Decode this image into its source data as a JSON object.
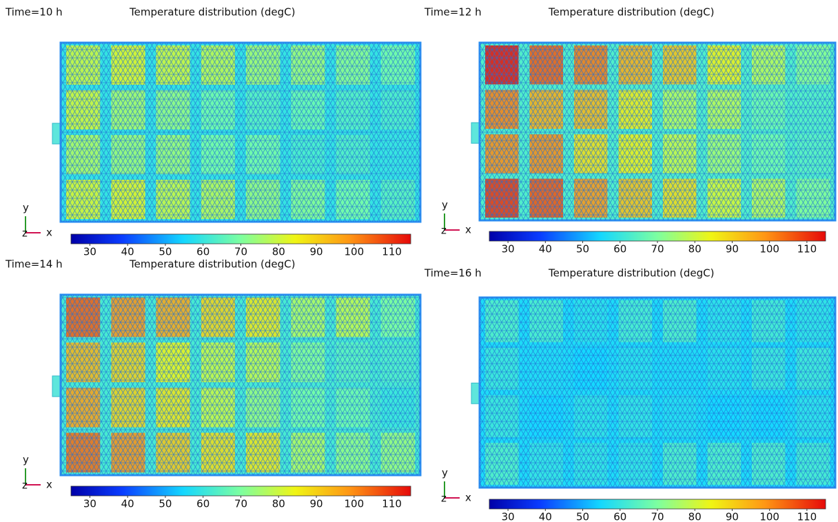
{
  "panels": [
    {
      "time": "Time=10 h",
      "title": "Temperature distribution (degC)",
      "axes": {
        "y": "y",
        "x": "x",
        "z": "z"
      },
      "colorbar": {
        "lim": [
          25,
          115
        ],
        "ticks": [
          30,
          40,
          50,
          60,
          70,
          80,
          90,
          100,
          110
        ]
      }
    },
    {
      "time": "Time=12 h",
      "title": "Temperature distribution (degC)",
      "axes": {
        "y": "y",
        "x": "x",
        "z": "z"
      },
      "colorbar": {
        "lim": [
          25,
          115
        ],
        "ticks": [
          30,
          40,
          50,
          60,
          70,
          80,
          90,
          100,
          110
        ]
      }
    },
    {
      "time": "Time=14 h",
      "title": "Temperature distribution (degC)",
      "axes": {
        "y": "y",
        "x": "x",
        "z": "z"
      },
      "colorbar": {
        "lim": [
          25,
          115
        ],
        "ticks": [
          30,
          40,
          50,
          60,
          70,
          80,
          90,
          100,
          110
        ]
      }
    },
    {
      "time": "Time=16 h",
      "title": "Temperature distribution (degC)",
      "axes": {
        "y": "y",
        "x": "x",
        "z": "z"
      },
      "colorbar": {
        "lim": [
          25,
          115
        ],
        "ticks": [
          30,
          40,
          50,
          60,
          70,
          80,
          90,
          100,
          110
        ]
      }
    }
  ]
}
